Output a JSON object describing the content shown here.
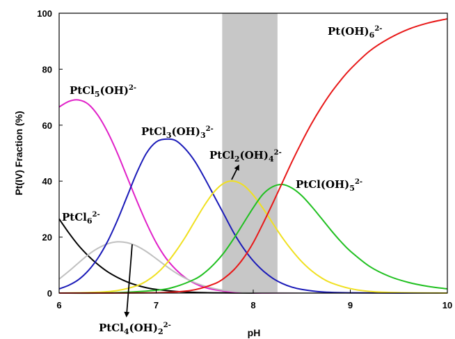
{
  "chart_data": {
    "type": "line",
    "title": "",
    "xlabel": "pH",
    "ylabel": "Pt(IV) Fraction (%)",
    "xlim": [
      6,
      10
    ],
    "ylim": [
      0,
      100
    ],
    "x_ticks": [
      "6",
      "7",
      "8",
      "9",
      "10"
    ],
    "y_ticks": [
      "0",
      "20",
      "40",
      "60",
      "80",
      "100"
    ],
    "grid": false,
    "shaded_region": {
      "x_start": 7.68,
      "x_end": 8.25,
      "color": "#bdbdbd"
    },
    "series": [
      {
        "name": "PtCl6",
        "label_base": "PtCl",
        "label_sub": "6",
        "label_tail": "",
        "label_charge": "2-",
        "color": "#000000",
        "x": [
          6.0,
          6.1,
          6.2,
          6.3,
          6.4,
          6.5,
          6.6,
          6.7,
          6.8,
          6.9,
          7.0,
          7.2,
          7.4,
          7.6,
          7.8,
          8.0,
          8.5,
          9.0,
          10.0
        ],
        "y": [
          26.5,
          21.5,
          17.0,
          13.3,
          10.2,
          7.6,
          5.6,
          4.0,
          2.8,
          1.9,
          1.3,
          0.6,
          0.25,
          0.1,
          0.04,
          0.0,
          0.0,
          0.0,
          0.0
        ]
      },
      {
        "name": "PtCl5(OH)",
        "label_base": "PtCl",
        "label_sub": "5",
        "label_tail": "(OH)",
        "label_charge": "2-",
        "color": "#e020c8",
        "x": [
          6.0,
          6.1,
          6.2,
          6.3,
          6.4,
          6.5,
          6.6,
          6.7,
          6.8,
          6.9,
          7.0,
          7.1,
          7.2,
          7.3,
          7.4,
          7.5,
          7.6,
          7.7,
          7.8,
          8.0,
          8.2,
          8.5,
          9.0,
          10.0
        ],
        "y": [
          66.5,
          68.5,
          69.0,
          67.5,
          63.5,
          57.5,
          50.0,
          41.5,
          33.0,
          25.0,
          18.0,
          12.5,
          8.5,
          5.5,
          3.4,
          2.0,
          1.2,
          0.7,
          0.4,
          0.1,
          0.03,
          0.0,
          0.0,
          0.0
        ]
      },
      {
        "name": "PtCl4(OH)2",
        "label_base": "PtCl",
        "label_sub": "4",
        "label_tail": "(OH)",
        "label_tail_sub": "2",
        "label_charge": "2-",
        "color": "#c0c0c0",
        "x": [
          6.0,
          6.1,
          6.2,
          6.3,
          6.4,
          6.5,
          6.6,
          6.7,
          6.8,
          6.9,
          7.0,
          7.1,
          7.2,
          7.3,
          7.4,
          7.5,
          7.6,
          7.7,
          7.8,
          8.0,
          8.2,
          8.5,
          9.0,
          10.0
        ],
        "y": [
          5.0,
          7.8,
          10.8,
          13.7,
          16.0,
          17.6,
          18.3,
          18.0,
          16.8,
          14.8,
          12.3,
          9.7,
          7.3,
          5.3,
          3.7,
          2.5,
          1.6,
          1.0,
          0.6,
          0.2,
          0.07,
          0.0,
          0.0,
          0.0
        ]
      },
      {
        "name": "PtCl3(OH)3",
        "label_base": "PtCl",
        "label_sub": "3",
        "label_tail": "(OH)",
        "label_tail_sub": "3",
        "label_charge": "2-",
        "color": "#1a1ab8",
        "x": [
          6.0,
          6.1,
          6.2,
          6.3,
          6.4,
          6.5,
          6.6,
          6.7,
          6.8,
          6.9,
          7.0,
          7.1,
          7.2,
          7.3,
          7.4,
          7.5,
          7.6,
          7.7,
          7.8,
          7.9,
          8.0,
          8.1,
          8.2,
          8.3,
          8.4,
          8.5,
          8.7,
          9.0,
          9.5,
          10.0
        ],
        "y": [
          1.5,
          2.8,
          4.8,
          8.0,
          12.5,
          18.5,
          26.0,
          34.5,
          43.0,
          50.0,
          54.0,
          55.0,
          54.5,
          51.5,
          47.0,
          41.0,
          34.5,
          28.0,
          21.5,
          16.0,
          11.5,
          8.0,
          5.3,
          3.4,
          2.1,
          1.3,
          0.45,
          0.1,
          0.0,
          0.0
        ]
      },
      {
        "name": "PtCl2(OH)4",
        "label_base": "PtCl",
        "label_sub": "2",
        "label_tail": "(OH)",
        "label_tail_sub": "4",
        "label_charge": "2-",
        "color": "#f0e020",
        "x": [
          6.0,
          6.2,
          6.4,
          6.6,
          6.8,
          6.9,
          7.0,
          7.1,
          7.2,
          7.3,
          7.4,
          7.5,
          7.6,
          7.7,
          7.8,
          7.9,
          8.0,
          8.1,
          8.2,
          8.3,
          8.4,
          8.5,
          8.6,
          8.7,
          8.8,
          9.0,
          9.2,
          9.5,
          10.0
        ],
        "y": [
          0.0,
          0.1,
          0.3,
          0.9,
          2.6,
          4.3,
          6.8,
          10.3,
          14.8,
          20.0,
          25.8,
          31.5,
          36.3,
          39.3,
          40.0,
          38.5,
          35.0,
          30.3,
          25.0,
          19.8,
          15.2,
          11.2,
          8.0,
          5.5,
          3.7,
          1.6,
          0.6,
          0.15,
          0.0
        ]
      },
      {
        "name": "PtCl(OH)5",
        "label_base": "PtCl(OH)",
        "label_sub": "5",
        "label_tail": "",
        "label_charge": "2-",
        "color": "#20c020",
        "x": [
          6.0,
          6.5,
          7.0,
          7.2,
          7.4,
          7.5,
          7.6,
          7.7,
          7.8,
          7.9,
          8.0,
          8.1,
          8.2,
          8.3,
          8.4,
          8.5,
          8.6,
          8.7,
          8.8,
          8.9,
          9.0,
          9.2,
          9.4,
          9.6,
          9.8,
          10.0
        ],
        "y": [
          0.0,
          0.05,
          1.0,
          2.3,
          5.0,
          7.3,
          10.5,
          14.5,
          19.5,
          25.0,
          30.5,
          35.3,
          38.0,
          38.8,
          37.5,
          34.8,
          31.0,
          26.8,
          22.5,
          18.5,
          15.0,
          9.5,
          6.0,
          3.8,
          2.4,
          1.5
        ]
      },
      {
        "name": "Pt(OH)6",
        "label_base": "Pt(OH)",
        "label_sub": "6",
        "label_tail": "",
        "label_charge": "2-",
        "color": "#e81818",
        "x": [
          6.0,
          6.5,
          7.0,
          7.2,
          7.4,
          7.6,
          7.7,
          7.8,
          7.9,
          8.0,
          8.1,
          8.2,
          8.3,
          8.4,
          8.5,
          8.6,
          8.7,
          8.8,
          8.9,
          9.0,
          9.2,
          9.4,
          9.6,
          9.8,
          10.0
        ],
        "y": [
          0.0,
          0.0,
          0.1,
          0.4,
          1.2,
          3.3,
          5.3,
          8.3,
          12.5,
          18.0,
          24.8,
          32.0,
          39.5,
          47.0,
          54.0,
          60.5,
          66.3,
          71.5,
          76.0,
          80.0,
          86.5,
          91.0,
          94.3,
          96.5,
          98.0
        ]
      }
    ]
  }
}
